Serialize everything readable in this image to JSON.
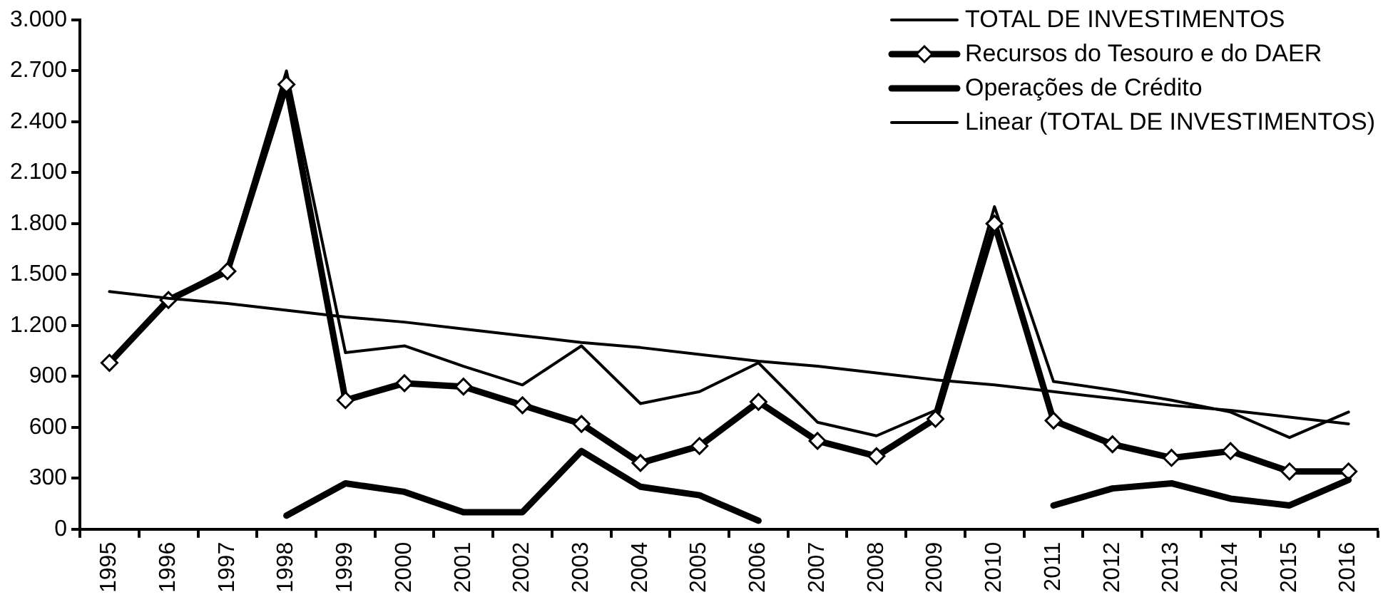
{
  "chart_data": {
    "type": "line",
    "categories": [
      "1995",
      "1996",
      "1997",
      "1998",
      "1999",
      "2000",
      "2001",
      "2002",
      "2003",
      "2004",
      "2005",
      "2006",
      "2007",
      "2008",
      "2009",
      "2010",
      "2011",
      "2012",
      "2013",
      "2014",
      "2015",
      "2016"
    ],
    "series": [
      {
        "name": "TOTAL DE INVESTIMENTOS",
        "color": "#000000",
        "marker": "none",
        "line_style": "solid",
        "values": [
          980,
          1350,
          1540,
          2700,
          1040,
          1080,
          960,
          850,
          1080,
          740,
          810,
          980,
          630,
          550,
          700,
          1900,
          870,
          820,
          760,
          690,
          540,
          690
        ]
      },
      {
        "name": "Recursos do Tesouro e do DAER",
        "color": "#000000",
        "marker": "diamond",
        "values": [
          980,
          1350,
          1520,
          2620,
          760,
          860,
          840,
          730,
          620,
          390,
          490,
          750,
          520,
          430,
          650,
          1800,
          640,
          500,
          420,
          460,
          340,
          340
        ]
      },
      {
        "name": "Operações de Crédito",
        "color": "#000000",
        "marker": "none",
        "values": [
          null,
          null,
          null,
          80,
          270,
          220,
          100,
          100,
          460,
          250,
          200,
          50,
          null,
          null,
          null,
          null,
          140,
          240,
          270,
          180,
          140,
          290
        ]
      },
      {
        "name": "Linear (TOTAL DE INVESTIMENTOS)",
        "color": "#000000",
        "line_style": "solid",
        "values": [
          1400,
          1360,
          1330,
          1290,
          1250,
          1220,
          1180,
          1140,
          1100,
          1070,
          1030,
          990,
          960,
          920,
          880,
          850,
          810,
          770,
          730,
          700,
          660,
          620
        ]
      }
    ],
    "ylim": [
      0,
      3000
    ],
    "yticks": [
      0,
      300,
      600,
      900,
      {
        "value": 1200,
        "label": "1.200"
      },
      {
        "value": 1500,
        "label": "1.500"
      },
      {
        "value": 1800,
        "label": "1.800"
      },
      {
        "value": 2100,
        "label": "2.100"
      },
      {
        "value": 2400,
        "label": "2.400"
      },
      {
        "value": 2700,
        "label": "2.700"
      },
      {
        "value": 3000,
        "label": "3.000"
      }
    ],
    "grid": false,
    "legend": "top right"
  }
}
